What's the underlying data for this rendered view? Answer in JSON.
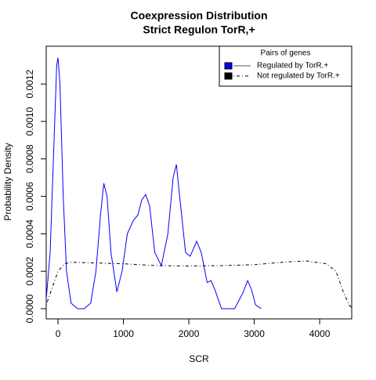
{
  "chart_data": {
    "type": "line",
    "title": "Coexpression Distribution",
    "subtitle": "Strict Regulon TorR,+",
    "x_label": "SCR",
    "y_label": "Probability Density",
    "xlim": [
      -180,
      4490
    ],
    "ylim": [
      -5.44e-05,
      0.0014017
    ],
    "xticks": [
      0,
      1000,
      2000,
      3000,
      4000
    ],
    "yticks": [
      {
        "value": 0,
        "label": "0.0000"
      },
      {
        "value": 0.0002,
        "label": "0.0002"
      },
      {
        "value": 0.0004,
        "label": "0.0004"
      },
      {
        "value": 0.0006,
        "label": "0.0006"
      },
      {
        "value": 0.0008,
        "label": "0.0008"
      },
      {
        "value": 0.001,
        "label": "0.0010"
      },
      {
        "value": 0.0012,
        "label": "0.0012"
      }
    ],
    "legend_title": "Pairs of genes",
    "legend_position": "top-right",
    "series": [
      {
        "name": "Regulated by  TorR.+",
        "color": "#0000ff",
        "dash": "solid",
        "x": [
          -180,
          -120,
          -60,
          -20,
          0,
          30,
          80,
          130,
          200,
          300,
          400,
          500,
          580,
          650,
          700,
          750,
          810,
          900,
          980,
          1060,
          1150,
          1220,
          1280,
          1340,
          1400,
          1480,
          1580,
          1680,
          1760,
          1810,
          1860,
          1950,
          2020,
          2120,
          2190,
          2280,
          2340,
          2400,
          2500,
          2700,
          2820,
          2900,
          2960,
          3020,
          3110
        ],
        "values": [
          5e-05,
          0.0003,
          0.0009,
          0.0013,
          0.00134,
          0.0012,
          0.0006,
          0.0002,
          3e-05,
          0,
          0,
          3e-05,
          0.0002,
          0.0005,
          0.00067,
          0.0006,
          0.0003,
          9e-05,
          0.0002,
          0.0004,
          0.00047,
          0.0005,
          0.00058,
          0.00061,
          0.00055,
          0.0003,
          0.00023,
          0.0004,
          0.0007,
          0.00077,
          0.0006,
          0.0003,
          0.00028,
          0.00036,
          0.0003,
          0.00014,
          0.00015,
          0.0001,
          0,
          0,
          8e-05,
          0.00015,
          0.0001,
          2e-05,
          0
        ]
      },
      {
        "name": "Not regulated by  TorR.+",
        "color": "#000000",
        "dash": "dotdash",
        "x": [
          -180,
          -100,
          0,
          100,
          200,
          500,
          1000,
          1500,
          2000,
          2500,
          3000,
          3500,
          3800,
          4100,
          4250,
          4350,
          4450,
          4490
        ],
        "values": [
          2e-05,
          0.0001,
          0.0002,
          0.00024,
          0.000248,
          0.000245,
          0.00024,
          0.00023,
          0.000228,
          0.00023,
          0.000235,
          0.00025,
          0.000255,
          0.00024,
          0.0002,
          0.0001,
          2e-05,
          5e-06
        ]
      }
    ]
  }
}
